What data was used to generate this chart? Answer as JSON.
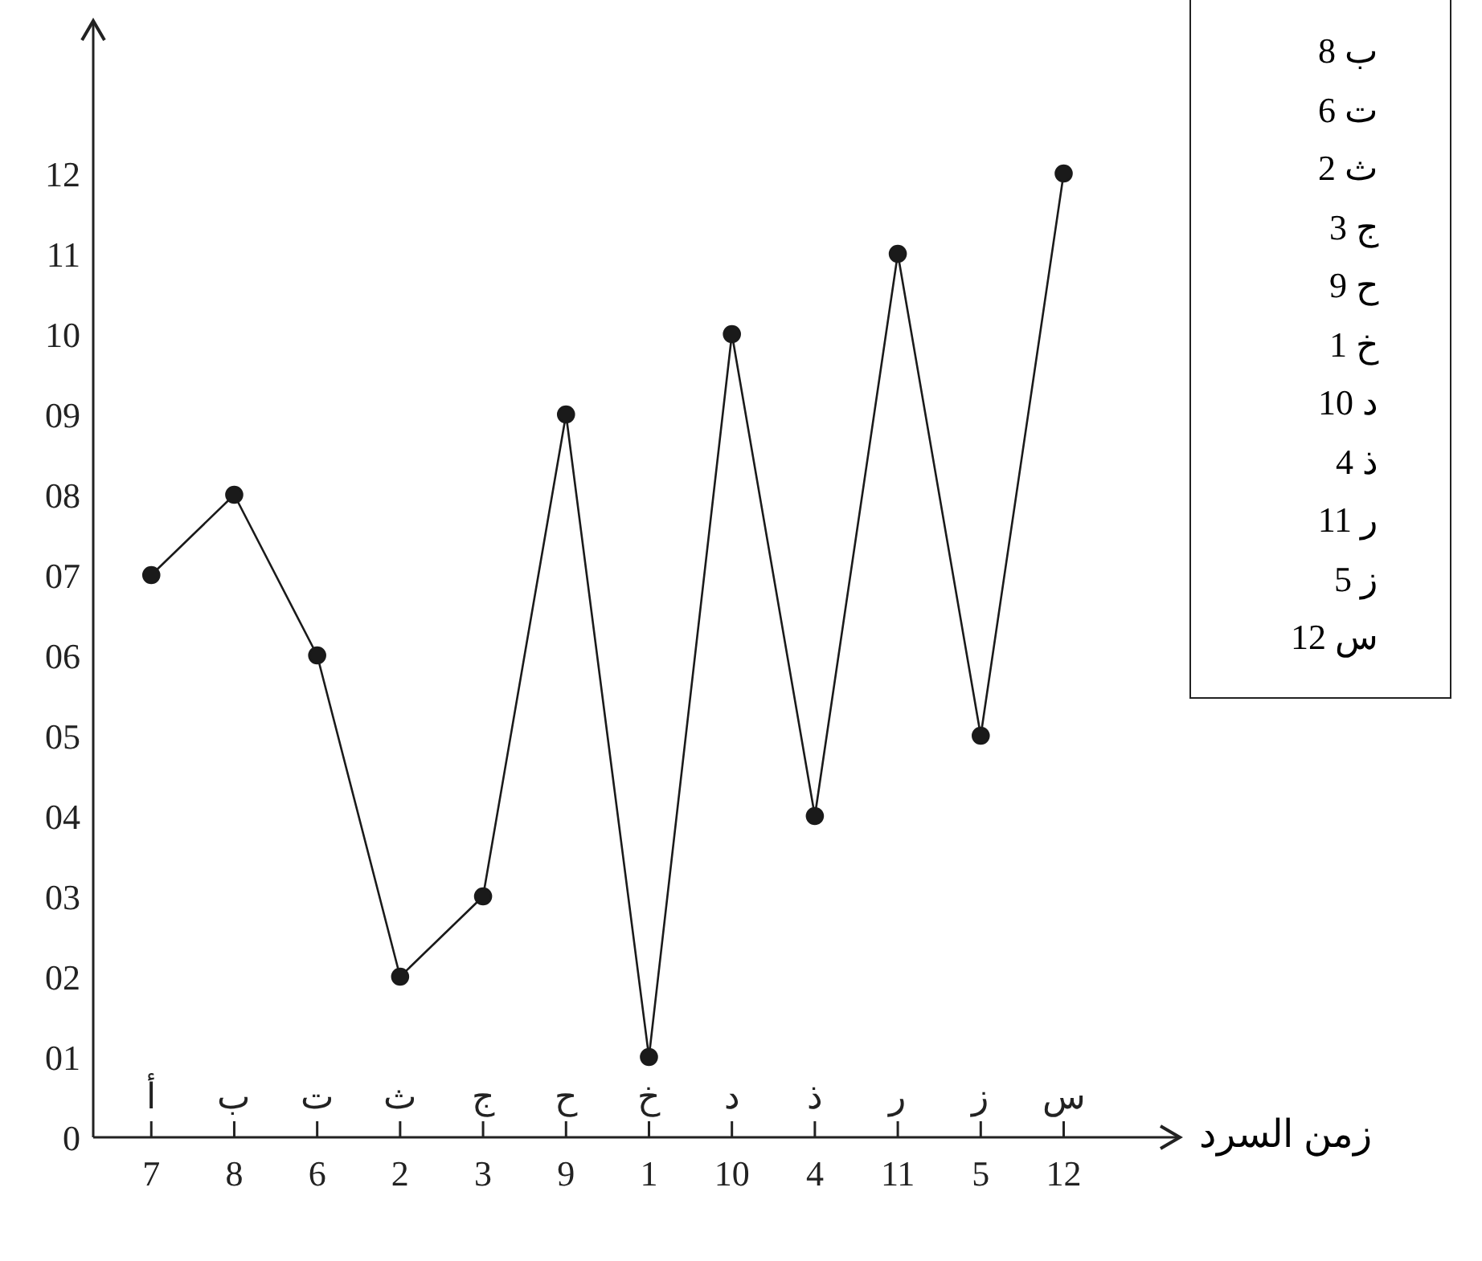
{
  "chart_data": {
    "type": "line",
    "xlabel": "زمن السرد",
    "categories": [
      "أ",
      "ب",
      "ت",
      "ث",
      "ج",
      "ح",
      "خ",
      "د",
      "ذ",
      "ر",
      "ز",
      "س"
    ],
    "series": [
      {
        "color": "#1a1a1a",
        "values": [
          7,
          8,
          6,
          2,
          3,
          9,
          1,
          10,
          4,
          11,
          5,
          12
        ]
      }
    ],
    "value_labels": [
      "7",
      "8",
      "6",
      "2",
      "3",
      "9",
      "1",
      "10",
      "4",
      "11",
      "5",
      "12"
    ],
    "ylim": [
      0,
      13.9
    ],
    "yticks": [
      0,
      {
        "value": 1,
        "label": "01"
      },
      {
        "value": 2,
        "label": "02"
      },
      {
        "value": 3,
        "label": "03"
      },
      {
        "value": 4,
        "label": "04"
      },
      {
        "value": 5,
        "label": "05"
      },
      {
        "value": 6,
        "label": "06"
      },
      {
        "value": 7,
        "label": "07"
      },
      {
        "value": 8,
        "label": "08"
      },
      {
        "value": 9,
        "label": "09"
      },
      10,
      11,
      12
    ],
    "marker": "circle",
    "line_style": "solid",
    "grid": false,
    "annotations": [
      "ب 8",
      "ت 6",
      "ث 2",
      "ج 3",
      "ح 9",
      "خ 1",
      "د 10",
      "ذ 4",
      "ر 11",
      "ز 5",
      "س 12"
    ]
  }
}
